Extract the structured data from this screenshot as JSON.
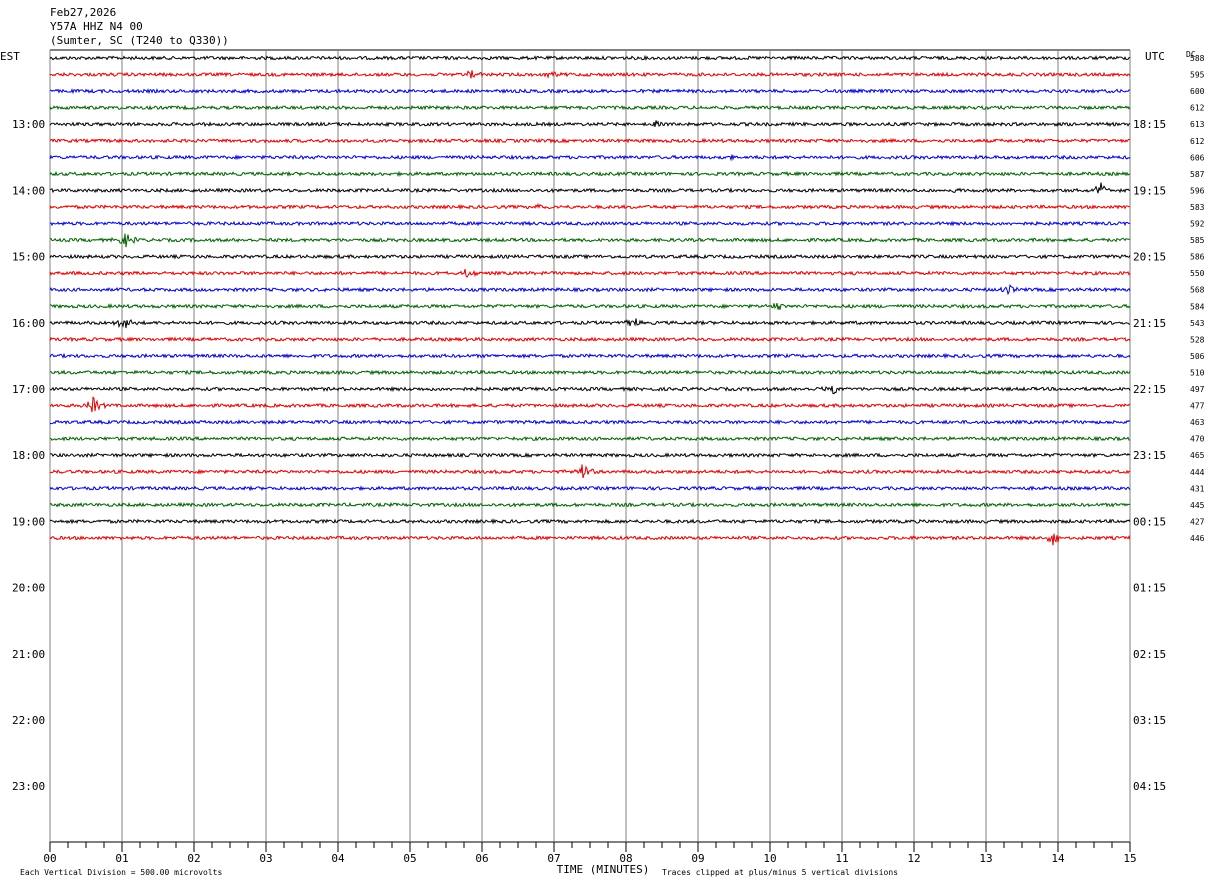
{
  "header": {
    "date": "Feb27,2026",
    "station": "Y57A HHZ N4 00",
    "location": "(Sumter, SC (T240 to Q330))"
  },
  "labels": {
    "left_tz": "EST",
    "right_tz": "UTC",
    "dc_header": "DC",
    "x_axis_title": "TIME (MINUTES)",
    "scale_note": "Each Vertical Division =  500.00 microvolts",
    "clip_note": "Traces clipped at plus/minus 5 vertical divisions"
  },
  "colors": {
    "trace_cycle": [
      "#000000",
      "#e00000",
      "#0000d0",
      "#006000"
    ],
    "grid": "#808080"
  },
  "chart_data": {
    "type": "line",
    "subtype": "helicorder",
    "x_ticks": [
      "00",
      "01",
      "02",
      "03",
      "04",
      "05",
      "06",
      "07",
      "08",
      "09",
      "10",
      "11",
      "12",
      "13",
      "14",
      "15"
    ],
    "xlim": [
      0,
      15
    ],
    "minutes_per_line": 15,
    "left_hour_labels": [
      "13:00",
      "14:00",
      "15:00",
      "16:00",
      "17:00",
      "18:00",
      "19:00",
      "20:00",
      "21:00",
      "22:00",
      "23:00"
    ],
    "right_hour_labels": [
      "18:15",
      "19:15",
      "20:15",
      "21:15",
      "22:15",
      "23:15",
      "00:15",
      "01:15",
      "02:15",
      "03:15",
      "04:15"
    ],
    "first_labeled_line_index": 4,
    "lines_per_hour": 4,
    "total_line_slots": 48,
    "dc_offsets": [
      588,
      595,
      600,
      612,
      613,
      612,
      606,
      587,
      596,
      583,
      592,
      585,
      586,
      550,
      568,
      584,
      543,
      528,
      506,
      510,
      497,
      477,
      463,
      470,
      465,
      444,
      431,
      445,
      427,
      446
    ],
    "events": [
      {
        "line": 1,
        "minute": 5.85,
        "amp": 0.7
      },
      {
        "line": 1,
        "minute": 7.0,
        "amp": 0.5
      },
      {
        "line": 4,
        "minute": 8.4,
        "amp": 0.5
      },
      {
        "line": 6,
        "minute": 9.5,
        "amp": 0.6
      },
      {
        "line": 8,
        "minute": 12.5,
        "amp": 0.6
      },
      {
        "line": 8,
        "minute": 14.6,
        "amp": 1.0
      },
      {
        "line": 9,
        "minute": 6.8,
        "amp": 0.5
      },
      {
        "line": 11,
        "minute": 1.05,
        "amp": 1.0
      },
      {
        "line": 13,
        "minute": 5.8,
        "amp": 0.6
      },
      {
        "line": 14,
        "minute": 13.3,
        "amp": 0.7
      },
      {
        "line": 15,
        "minute": 10.1,
        "amp": 0.6
      },
      {
        "line": 16,
        "minute": 1.05,
        "amp": 1.3
      },
      {
        "line": 16,
        "minute": 8.1,
        "amp": 0.8
      },
      {
        "line": 20,
        "minute": 10.9,
        "amp": 0.7
      },
      {
        "line": 21,
        "minute": 0.6,
        "amp": 1.2
      },
      {
        "line": 25,
        "minute": 7.4,
        "amp": 1.3
      },
      {
        "line": 29,
        "minute": 13.95,
        "amp": 1.2
      }
    ]
  }
}
